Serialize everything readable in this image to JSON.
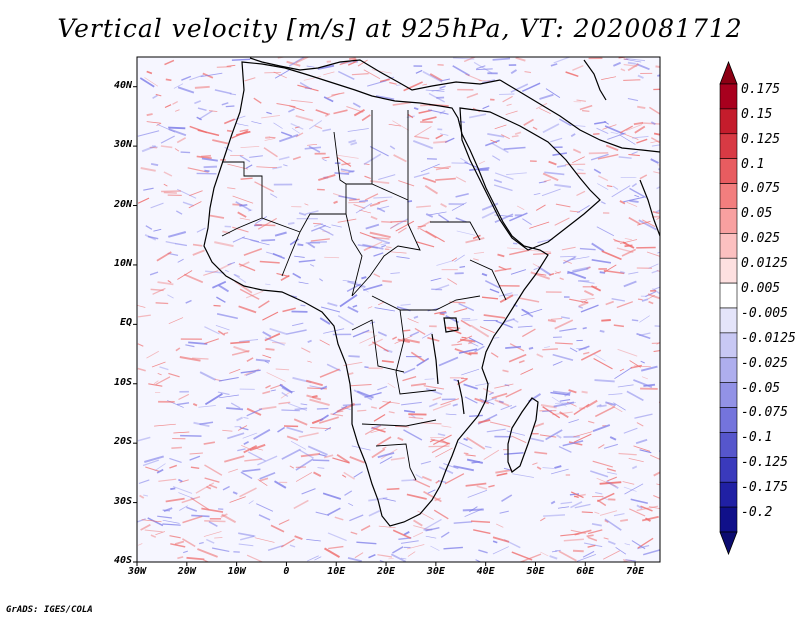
{
  "title": "Vertical velocity [m/s] at 925hPa, VT: 2020081712",
  "credit": "GrADS: IGES/COLA",
  "map": {
    "lon_range": [
      -30,
      75
    ],
    "lat_range": [
      -40,
      45
    ],
    "lat_ticks": [
      {
        "value": 40,
        "label": "40N"
      },
      {
        "value": 30,
        "label": "30N"
      },
      {
        "value": 20,
        "label": "20N"
      },
      {
        "value": 10,
        "label": "10N"
      },
      {
        "value": 0,
        "label": "EQ"
      },
      {
        "value": -10,
        "label": "10S"
      },
      {
        "value": -20,
        "label": "20S"
      },
      {
        "value": -30,
        "label": "30S"
      },
      {
        "value": -40,
        "label": "40S"
      }
    ],
    "lon_ticks": [
      {
        "value": -30,
        "label": "30W"
      },
      {
        "value": -20,
        "label": "20W"
      },
      {
        "value": -10,
        "label": "10W"
      },
      {
        "value": 0,
        "label": "0"
      },
      {
        "value": 10,
        "label": "10E"
      },
      {
        "value": 20,
        "label": "20E"
      },
      {
        "value": 30,
        "label": "30E"
      },
      {
        "value": 40,
        "label": "40E"
      },
      {
        "value": 50,
        "label": "50E"
      },
      {
        "value": 60,
        "label": "60E"
      },
      {
        "value": 70,
        "label": "70E"
      }
    ]
  },
  "colorbar": {
    "labels": [
      "0.175",
      "0.15",
      "0.125",
      "0.1",
      "0.075",
      "0.05",
      "0.025",
      "0.0125",
      "0.005",
      "-0.005",
      "-0.0125",
      "-0.025",
      "-0.05",
      "-0.075",
      "-0.1",
      "-0.125",
      "-0.175",
      "-0.2"
    ],
    "colors": [
      "#a8001e",
      "#c41c2c",
      "#d83a44",
      "#e85c60",
      "#f27e7e",
      "#f8a0a0",
      "#fcc0c0",
      "#fee0e0",
      "#ffffff",
      "#e4e4fa",
      "#c8c8f4",
      "#aeaeee",
      "#9292e6",
      "#7474dc",
      "#5656cc",
      "#3a3abc",
      "#2020a4",
      "#10108a"
    ],
    "top_triangle": "#8c0014",
    "bottom_triangle": "#0c0c70"
  },
  "colors": {
    "red_field": "#ee6a6a",
    "blue_field": "#7d7de8",
    "coastline": "#000000"
  }
}
